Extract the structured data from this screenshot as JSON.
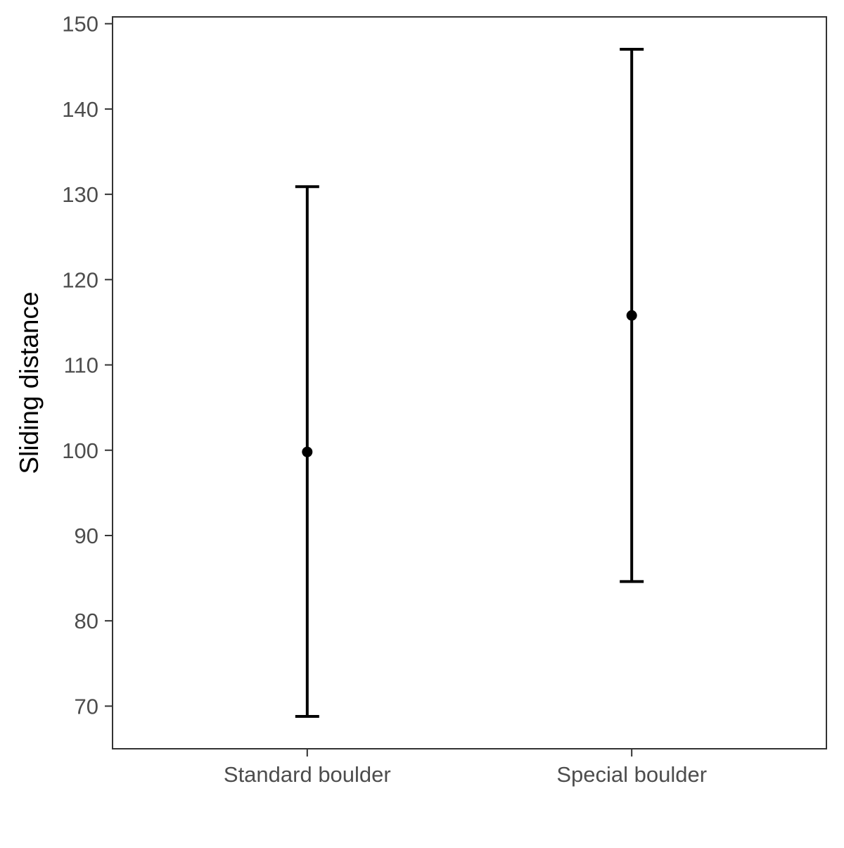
{
  "chart_data": {
    "type": "errorbar",
    "title": "",
    "xlabel": "",
    "ylabel": "Sliding distance",
    "categories": [
      "Standard boulder",
      "Special boulder"
    ],
    "points": [
      {
        "category": "Standard boulder",
        "mean": 99.8,
        "lower": 68.8,
        "upper": 130.9
      },
      {
        "category": "Special boulder",
        "mean": 115.8,
        "lower": 84.6,
        "upper": 147.0
      }
    ],
    "yticks": [
      70,
      80,
      90,
      100,
      110,
      120,
      130,
      140,
      150
    ],
    "ylim": [
      65,
      150.8
    ],
    "grid": false,
    "legend": "none",
    "colors": {
      "mark": "#000000",
      "panel_border": "#333333",
      "tick_text": "#4d4d4d",
      "axis_title": "#000000",
      "background": "#ffffff"
    }
  }
}
